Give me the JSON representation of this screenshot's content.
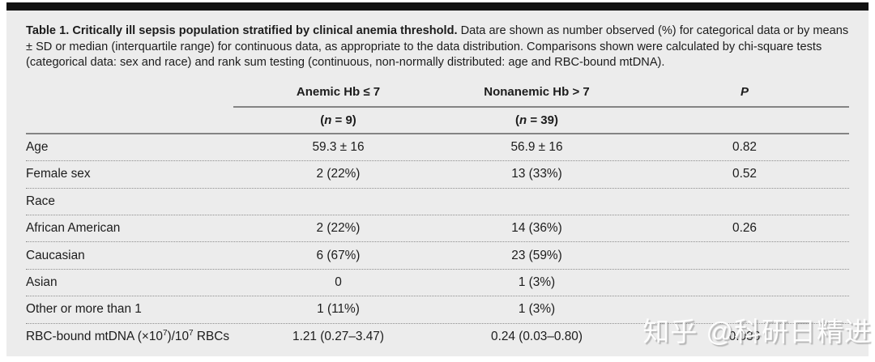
{
  "caption": {
    "title": "Table 1. Critically ill sepsis population stratified by clinical anemia threshold.",
    "body": " Data are shown as number observed (%) for categorical data or by means ± SD or median (interquartile range) for continuous data, as appropriate to the data distribution. Comparisons shown were calculated by chi-square tests (categorical data: sex and race) and rank sum testing (continuous, non-normally distributed: age and RBC-bound mtDNA)."
  },
  "table": {
    "columns": {
      "anemic": {
        "label": "Anemic Hb ≤ 7",
        "n_prefix": "(",
        "n_italic": "n",
        "n_rest": " = 9)"
      },
      "nonanemic": {
        "label": "Nonanemic Hb > 7",
        "n_prefix": "(",
        "n_italic": "n",
        "n_rest": " = 39)"
      },
      "p": {
        "label": "P"
      }
    },
    "rows": [
      {
        "label": "Age",
        "anemic": "59.3 ± 16",
        "nonanemic": "56.9 ± 16",
        "p": "0.82"
      },
      {
        "label": "Female sex",
        "anemic": "2 (22%)",
        "nonanemic": "13 (33%)",
        "p": "0.52"
      },
      {
        "label": "Race",
        "anemic": "",
        "nonanemic": "",
        "p": ""
      },
      {
        "label": "African American",
        "anemic": "2 (22%)",
        "nonanemic": "14 (36%)",
        "p": "0.26"
      },
      {
        "label": "Caucasian",
        "anemic": "6 (67%)",
        "nonanemic": "23 (59%)",
        "p": ""
      },
      {
        "label": "Asian",
        "anemic": "0",
        "nonanemic": "1 (3%)",
        "p": ""
      },
      {
        "label": "Other or more than 1",
        "anemic": "1 (11%)",
        "nonanemic": "1 (3%)",
        "p": ""
      },
      {
        "label_parts": {
          "a": "RBC-bound mtDNA (×10",
          "sup1": "7",
          "b": ")/10",
          "sup2": "7",
          "c": " RBCs"
        },
        "anemic": "1.21 (0.27–3.47)",
        "nonanemic": "0.24 (0.03–0.80)",
        "p": "0.036"
      }
    ]
  },
  "watermark": {
    "text": "知乎 @科研日精进"
  }
}
